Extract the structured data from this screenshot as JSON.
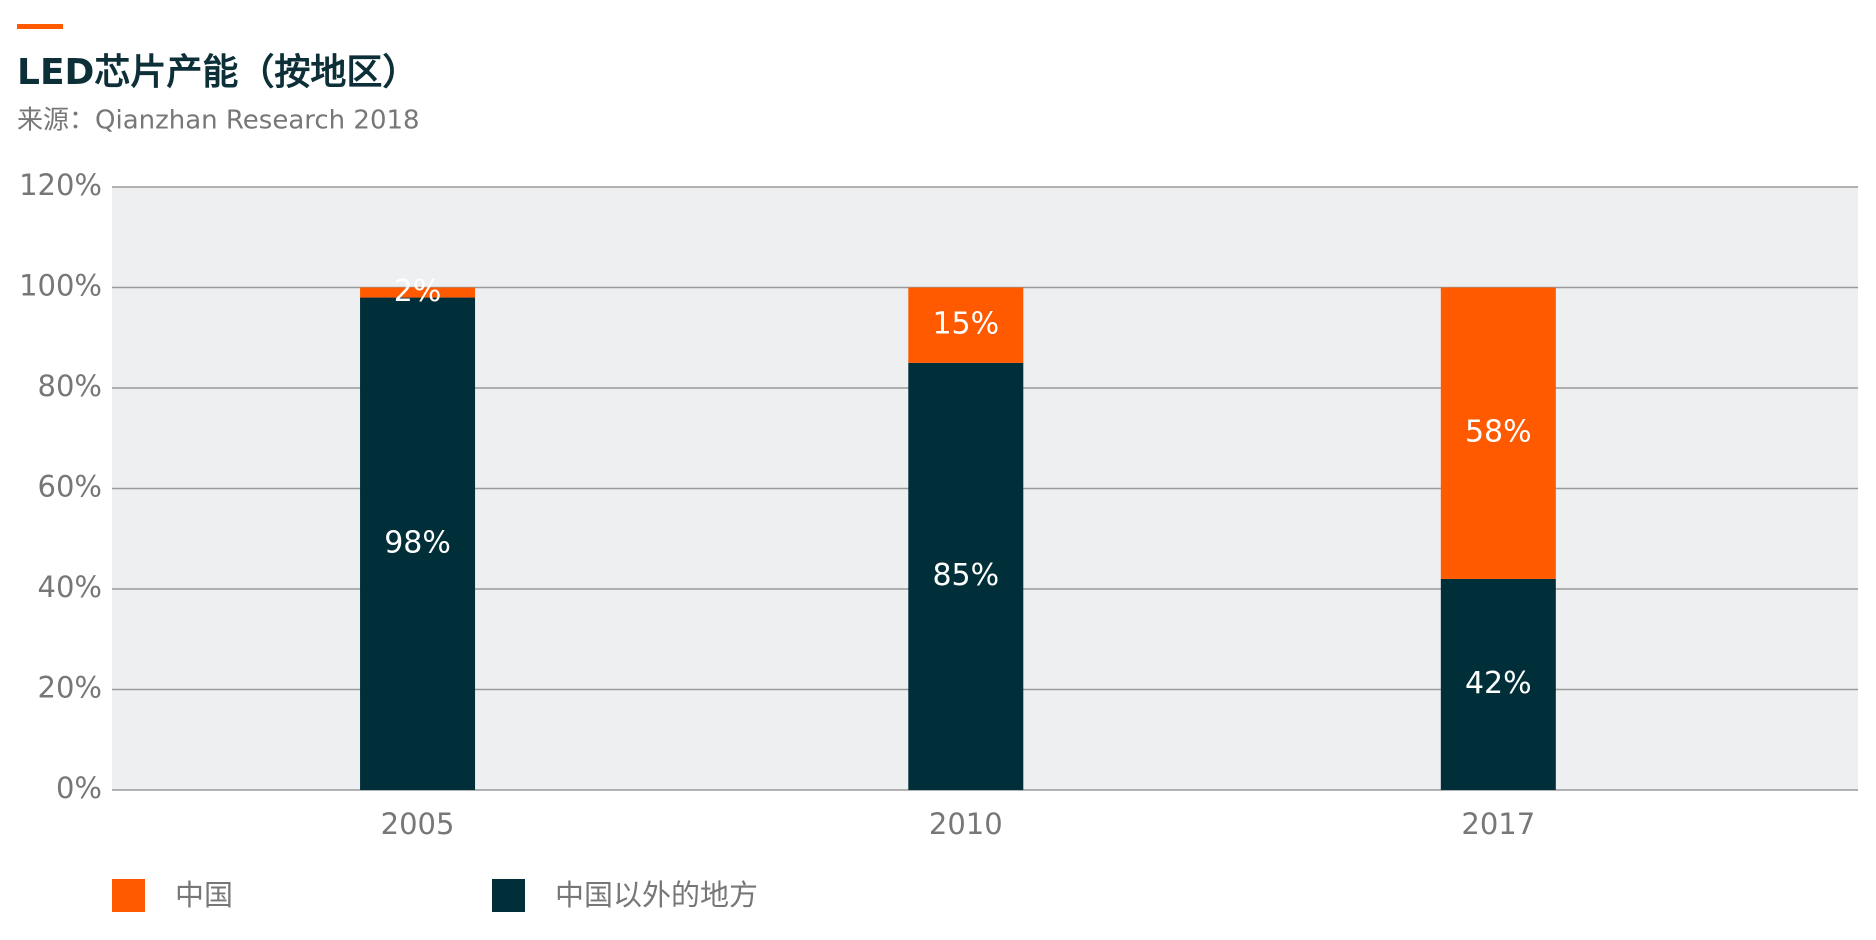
{
  "chart_data": {
    "type": "stacked_bar",
    "title": "LED芯片产能（按地区）",
    "subtitle": "来源：Qianzhan Research 2018",
    "categories": [
      "2005",
      "2010",
      "2017"
    ],
    "series": [
      {
        "name": "中国",
        "color": "#ff5a00",
        "values": [
          2,
          15,
          58
        ],
        "value_labels": [
          "2%",
          "15%",
          "58%"
        ]
      },
      {
        "name": "中国以外的地方",
        "color": "#012f39",
        "values": [
          98,
          85,
          42
        ],
        "value_labels": [
          "98%",
          "85%",
          "42%"
        ]
      }
    ],
    "ylim": [
      0,
      120
    ],
    "yticks": [
      {
        "value": 0,
        "label": "0%"
      },
      {
        "value": 20,
        "label": "20%"
      },
      {
        "value": 40,
        "label": "40%"
      },
      {
        "value": 60,
        "label": "60%"
      },
      {
        "value": 80,
        "label": "80%"
      },
      {
        "value": 100,
        "label": "100%"
      },
      {
        "value": 120,
        "label": "120%"
      }
    ],
    "grid": true,
    "legend": "bottom"
  }
}
